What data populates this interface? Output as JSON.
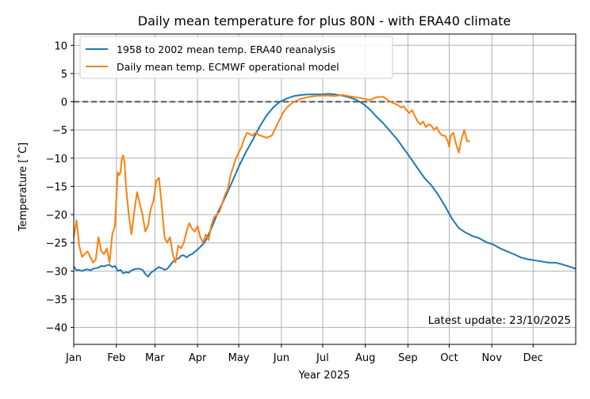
{
  "chart_data": {
    "type": "line",
    "title": "Daily mean temperature for plus 80N - with ERA40 climate",
    "xlabel": "Year 2025",
    "ylabel": "Temperature [$^\\circ$C]",
    "ylabel_display": "Temperature [˚C]",
    "xlim": [
      0,
      365
    ],
    "ylim": [
      -43,
      12
    ],
    "yticks": [
      10,
      5,
      0,
      -5,
      -10,
      -15,
      -20,
      -25,
      -30,
      -35,
      -40
    ],
    "ytick_labels": [
      "10",
      "5",
      "0",
      "−5",
      "−10",
      "−15",
      "−20",
      "−25",
      "−30",
      "−35",
      "−40"
    ],
    "xticks": [
      0,
      31,
      59,
      90,
      120,
      151,
      181,
      212,
      243,
      273,
      304,
      334
    ],
    "xtick_labels": [
      "Jan",
      "Feb",
      "Mar",
      "Apr",
      "May",
      "Jun",
      "Jul",
      "Aug",
      "Sep",
      "Oct",
      "Nov",
      "Dec"
    ],
    "grid": true,
    "zero_line": {
      "y": 0,
      "color": "#555555",
      "style": "dashed"
    },
    "legend_placement": "top-left",
    "annotation": "Latest update: 23/10/2025",
    "series": [
      {
        "name": "1958 to 2002 mean temp. ERA40 reanalysis",
        "color": "#1f77b4",
        "x": [
          0,
          2,
          4,
          6,
          8,
          10,
          12,
          14,
          16,
          18,
          20,
          22,
          24,
          26,
          28,
          30,
          32,
          34,
          36,
          38,
          40,
          42,
          44,
          46,
          48,
          50,
          52,
          54,
          56,
          58,
          60,
          62,
          64,
          66,
          68,
          70,
          72,
          74,
          76,
          78,
          80,
          82,
          84,
          86,
          88,
          90,
          95,
          100,
          105,
          110,
          115,
          120,
          125,
          130,
          135,
          140,
          145,
          150,
          155,
          160,
          165,
          170,
          175,
          180,
          185,
          190,
          195,
          200,
          205,
          210,
          215,
          220,
          225,
          230,
          235,
          240,
          245,
          250,
          255,
          260,
          265,
          270,
          275,
          280,
          285,
          290,
          295,
          300,
          305,
          310,
          315,
          320,
          325,
          330,
          335,
          340,
          345,
          350,
          355,
          360,
          365
        ],
        "y": [
          -29.2,
          -29.9,
          -29.8,
          -30.0,
          -29.8,
          -29.7,
          -29.9,
          -29.6,
          -29.5,
          -29.4,
          -29.1,
          -29.2,
          -29.0,
          -28.9,
          -29.3,
          -29.1,
          -30.0,
          -29.8,
          -30.4,
          -30.2,
          -30.3,
          -29.9,
          -29.7,
          -29.6,
          -29.6,
          -29.8,
          -30.5,
          -31.0,
          -30.3,
          -30.0,
          -29.6,
          -29.3,
          -29.5,
          -29.8,
          -29.6,
          -29.0,
          -28.4,
          -27.9,
          -27.8,
          -27.3,
          -27.2,
          -27.6,
          -27.2,
          -27.0,
          -26.6,
          -26.2,
          -25.0,
          -22.5,
          -19.5,
          -17.0,
          -14.3,
          -11.5,
          -9.0,
          -6.8,
          -4.5,
          -2.5,
          -1.0,
          0.0,
          0.6,
          1.0,
          1.2,
          1.3,
          1.3,
          1.3,
          1.4,
          1.3,
          1.1,
          0.8,
          0.4,
          -0.3,
          -1.3,
          -2.6,
          -3.8,
          -5.2,
          -6.6,
          -8.3,
          -10.0,
          -11.8,
          -13.5,
          -14.8,
          -16.5,
          -18.5,
          -20.7,
          -22.4,
          -23.2,
          -23.8,
          -24.2,
          -24.9,
          -25.3,
          -26.0,
          -26.5,
          -27.0,
          -27.6,
          -27.9,
          -28.1,
          -28.3,
          -28.5,
          -28.5,
          -28.8,
          -29.2,
          -29.6
        ]
      },
      {
        "name": "Daily mean temp. ECMWF operational model",
        "color": "#ff7f0e",
        "x": [
          0,
          2,
          4,
          6,
          8,
          10,
          12,
          14,
          16,
          18,
          20,
          22,
          24,
          26,
          28,
          30,
          31,
          32,
          33,
          34,
          35,
          36,
          37,
          38,
          40,
          42,
          44,
          46,
          48,
          50,
          52,
          54,
          56,
          58,
          60,
          62,
          64,
          66,
          68,
          70,
          72,
          74,
          76,
          78,
          80,
          82,
          84,
          86,
          88,
          90,
          92,
          94,
          96,
          98,
          100,
          102,
          104,
          106,
          108,
          110,
          112,
          114,
          116,
          118,
          120,
          122,
          124,
          126,
          128,
          130,
          132,
          134,
          136,
          138,
          140,
          142,
          144,
          146,
          148,
          150,
          152,
          155,
          160,
          165,
          170,
          175,
          180,
          185,
          190,
          195,
          200,
          205,
          210,
          215,
          220,
          225,
          230,
          235,
          238,
          240,
          242,
          244,
          246,
          248,
          250,
          252,
          254,
          256,
          258,
          260,
          262,
          264,
          266,
          268,
          270,
          271,
          272,
          273,
          274,
          276,
          278,
          280,
          282,
          284,
          286,
          288
        ],
        "y": [
          -24.0,
          -21.0,
          -25.5,
          -27.5,
          -27.0,
          -26.5,
          -27.5,
          -28.5,
          -28.0,
          -24.0,
          -26.5,
          -27.0,
          -26.0,
          -28.5,
          -23.5,
          -22.0,
          -17.0,
          -12.5,
          -13.0,
          -12.5,
          -10.0,
          -9.5,
          -11.0,
          -15.0,
          -20.0,
          -23.5,
          -19.5,
          -16.0,
          -18.0,
          -20.0,
          -23.0,
          -22.0,
          -19.0,
          -17.5,
          -14.0,
          -13.5,
          -18.5,
          -24.0,
          -25.0,
          -24.0,
          -27.0,
          -28.5,
          -25.5,
          -26.0,
          -25.0,
          -23.0,
          -21.5,
          -22.5,
          -23.0,
          -22.0,
          -24.0,
          -25.0,
          -23.5,
          -24.5,
          -22.0,
          -20.5,
          -20.0,
          -19.5,
          -18.0,
          -16.5,
          -15.5,
          -13.0,
          -11.5,
          -10.0,
          -9.0,
          -8.0,
          -6.5,
          -5.5,
          -5.7,
          -6.0,
          -5.5,
          -5.8,
          -6.0,
          -6.2,
          -6.4,
          -6.2,
          -6.0,
          -5.0,
          -4.0,
          -3.0,
          -2.0,
          -1.0,
          0.0,
          0.5,
          0.8,
          1.0,
          1.1,
          1.1,
          1.0,
          1.2,
          1.0,
          0.8,
          0.6,
          0.3,
          0.8,
          0.9,
          0.0,
          -0.5,
          -1.0,
          -0.8,
          -1.5,
          -2.0,
          -1.5,
          -2.5,
          -3.5,
          -4.0,
          -3.5,
          -4.5,
          -4.0,
          -4.2,
          -5.0,
          -4.5,
          -5.5,
          -6.0,
          -6.0,
          -6.5,
          -7.0,
          -8.0,
          -6.0,
          -5.5,
          -7.5,
          -9.0,
          -6.5,
          -5.0,
          -7.0,
          -7.0
        ]
      }
    ]
  }
}
